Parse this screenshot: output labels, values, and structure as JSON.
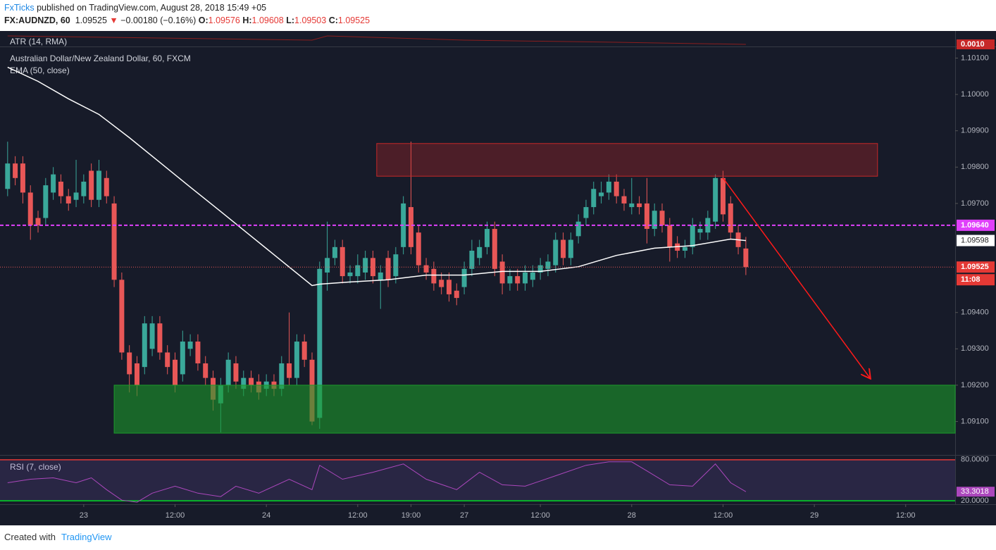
{
  "header": {
    "publisher": "FxTicks",
    "published": "published on TradingView.com, August 28, 2018 15:49 +05",
    "symbol": "FX:AUDNZD, 60",
    "last": "1.09525",
    "arrow": "▼",
    "change": "−0.00180 (−0.16%)",
    "ohlc": [
      {
        "label": "O:",
        "value": "1.09576"
      },
      {
        "label": "H:",
        "value": "1.09608"
      },
      {
        "label": "L:",
        "value": "1.09503"
      },
      {
        "label": "C:",
        "value": "1.09525"
      }
    ]
  },
  "footer": {
    "created": "Created with",
    "brand": "TradingView"
  },
  "chart_data": {
    "type": "candlestick",
    "title": "Australian Dollar/New Zealand Dollar, 60, FXCM",
    "up_color": "#3aa89a",
    "down_color": "#e85757",
    "xlim": [
      -1,
      124.5
    ],
    "xticks": [
      {
        "value": 10,
        "label": "23"
      },
      {
        "value": 22,
        "label": "12:00"
      },
      {
        "value": 34,
        "label": "24"
      },
      {
        "value": 46,
        "label": "12:00"
      },
      {
        "value": 53,
        "label": "19:00"
      },
      {
        "value": 60,
        "label": "27"
      },
      {
        "value": 70,
        "label": "12:00"
      },
      {
        "value": 82,
        "label": "28"
      },
      {
        "value": 94,
        "label": "12:00"
      },
      {
        "value": 106,
        "label": "29"
      },
      {
        "value": 118,
        "label": "12:00"
      }
    ],
    "ylim": [
      1.0901,
      1.1013
    ],
    "yticks": [
      {
        "value": 1.101,
        "label": "1.10100"
      },
      {
        "value": 1.1,
        "label": "1.10000"
      },
      {
        "value": 1.099,
        "label": "1.09900"
      },
      {
        "value": 1.098,
        "label": "1.09800"
      },
      {
        "value": 1.097,
        "label": "1.09700"
      },
      {
        "value": 1.094,
        "label": "1.09400"
      },
      {
        "value": 1.093,
        "label": "1.09300"
      },
      {
        "value": 1.092,
        "label": "1.09200"
      },
      {
        "value": 1.091,
        "label": "1.09100"
      }
    ],
    "open": [
      1.0974,
      1.0981,
      1.0981,
      1.0973,
      1.0966,
      1.0966,
      1.0973,
      1.0976,
      1.0972,
      1.0971,
      1.0972,
      1.0979,
      1.0971,
      1.0977,
      1.097,
      1.0949,
      1.0929,
      1.0926,
      1.0925,
      1.093,
      1.0937,
      1.0929,
      1.0927,
      1.0923,
      1.093,
      1.0932,
      1.0926,
      1.0922,
      1.0915,
      1.092,
      1.0926,
      1.0919,
      1.0922,
      1.0921,
      1.0919,
      1.0921,
      1.0919,
      1.0926,
      1.0922,
      1.0932,
      1.0927,
      1.0911,
      1.0951,
      1.0955,
      1.0958,
      1.095,
      1.095,
      1.0951,
      1.0955,
      1.0949,
      1.0955,
      1.095,
      1.0958,
      1.0969,
      1.0962,
      1.0953,
      1.0952,
      1.0949,
      1.0949,
      1.0946,
      1.0947,
      1.0952,
      1.0955,
      1.0958,
      1.0963,
      1.0954,
      1.0948,
      1.095,
      1.0948,
      1.0949,
      1.0951,
      1.0952,
      1.0953,
      1.096,
      1.0955,
      1.0961,
      1.0966,
      1.0969,
      1.0972,
      1.0973,
      1.0976,
      1.0972,
      1.0969,
      1.097,
      1.097,
      1.0963,
      1.0968,
      1.0964,
      1.0959,
      1.0957,
      1.0958,
      1.0962,
      1.0962,
      1.0965,
      1.0977,
      1.097,
      1.0962,
      1.09576
    ],
    "high": [
      1.0987,
      1.0983,
      1.0983,
      1.0975,
      1.0968,
      1.0977,
      1.098,
      1.0978,
      1.0974,
      1.0982,
      1.0978,
      1.0981,
      1.0982,
      1.0979,
      1.0972,
      1.0951,
      1.0931,
      1.0928,
      1.0939,
      1.0939,
      1.0939,
      1.0931,
      1.0929,
      1.0935,
      1.0934,
      1.0934,
      1.0928,
      1.0924,
      1.0922,
      1.0929,
      1.0928,
      1.0924,
      1.0924,
      1.0923,
      1.0923,
      1.0923,
      1.0928,
      1.094,
      1.0934,
      1.0934,
      1.0929,
      1.0954,
      1.0965,
      1.096,
      1.096,
      1.0953,
      1.0956,
      1.0957,
      1.0957,
      1.0953,
      1.0957,
      1.0958,
      1.0972,
      1.0987,
      1.0964,
      1.0955,
      1.0954,
      1.0951,
      1.0951,
      1.0948,
      1.0954,
      1.096,
      1.096,
      1.0965,
      1.0965,
      1.0956,
      1.0952,
      1.0952,
      1.0953,
      1.0953,
      1.0955,
      1.0956,
      1.0962,
      1.0962,
      1.0962,
      1.0967,
      1.0971,
      1.0976,
      1.0976,
      1.0978,
      1.0978,
      1.0974,
      1.0977,
      1.0972,
      1.0977,
      1.097,
      1.097,
      1.0966,
      1.0961,
      1.096,
      1.0966,
      1.0965,
      1.0968,
      1.0978,
      1.0979,
      1.0972,
      1.0964,
      1.09608
    ],
    "low": [
      1.0972,
      1.0975,
      1.097,
      1.096,
      1.0962,
      1.0964,
      1.0971,
      1.097,
      1.0968,
      1.0969,
      1.097,
      1.0969,
      1.0969,
      1.097,
      1.0947,
      1.0927,
      1.0918,
      1.0917,
      1.0923,
      1.0928,
      1.0927,
      1.0923,
      1.0918,
      1.0921,
      1.0928,
      1.0924,
      1.092,
      1.0913,
      1.0907,
      1.0918,
      1.0919,
      1.0917,
      1.0918,
      1.0916,
      1.0917,
      1.0917,
      1.0917,
      1.092,
      1.092,
      1.0925,
      1.0909,
      1.0908,
      1.0946,
      1.0953,
      1.0948,
      1.0948,
      1.0948,
      1.0949,
      1.0948,
      1.0941,
      1.0947,
      1.0948,
      1.0956,
      1.0956,
      1.0951,
      1.0949,
      1.0946,
      1.0945,
      1.0943,
      1.0942,
      1.0945,
      1.095,
      1.0953,
      1.0956,
      1.095,
      1.0945,
      1.0946,
      1.0946,
      1.0946,
      1.0947,
      1.0949,
      1.095,
      1.0951,
      1.0953,
      1.0953,
      1.0959,
      1.0964,
      1.0967,
      1.097,
      1.0971,
      1.097,
      1.0968,
      1.0967,
      1.0967,
      1.0959,
      1.0961,
      1.0962,
      1.0954,
      1.0955,
      1.0955,
      1.0956,
      1.096,
      1.096,
      1.0963,
      1.0965,
      1.096,
      1.0956,
      1.09503
    ],
    "close": [
      1.0981,
      1.0977,
      1.0973,
      1.0964,
      1.0964,
      1.0975,
      1.0978,
      1.0972,
      1.097,
      1.0973,
      1.0976,
      1.0971,
      1.0979,
      1.0972,
      1.0949,
      1.0929,
      1.0923,
      1.092,
      1.0937,
      1.0937,
      1.0929,
      1.0925,
      1.092,
      1.0932,
      1.0932,
      1.0926,
      1.0922,
      1.0916,
      1.092,
      1.0927,
      1.0921,
      1.0922,
      1.092,
      1.0918,
      1.0921,
      1.0919,
      1.0926,
      1.0922,
      1.0932,
      1.0927,
      1.091,
      1.0952,
      1.0955,
      1.0958,
      1.095,
      1.0951,
      1.0953,
      1.0955,
      1.095,
      1.0951,
      1.0949,
      1.0956,
      1.097,
      1.0958,
      1.0953,
      1.0951,
      1.0948,
      1.0947,
      1.0945,
      1.0944,
      1.0952,
      1.0957,
      1.0958,
      1.0963,
      1.0952,
      1.0948,
      1.095,
      1.0948,
      1.0951,
      1.0951,
      1.0953,
      1.0954,
      1.096,
      1.0955,
      1.096,
      1.0965,
      1.0969,
      1.0974,
      1.0973,
      1.0976,
      1.0972,
      1.097,
      1.097,
      1.0969,
      1.0963,
      1.0968,
      1.0964,
      1.0958,
      1.0957,
      1.0958,
      1.0964,
      1.0963,
      1.0966,
      1.0977,
      1.0967,
      1.0962,
      1.0958,
      1.09525
    ],
    "last_label": {
      "value": 1.09525,
      "label": "1.09525"
    },
    "countdown": "11:08",
    "level": {
      "value": 1.0964,
      "label": "1.09640",
      "color": "#e040fb"
    },
    "ema": {
      "name": "EMA (50, close)",
      "color": "#ffffff",
      "x": [
        0,
        4,
        8,
        12,
        13,
        16,
        20,
        24,
        28,
        32,
        36,
        40,
        41,
        45,
        50,
        55,
        60,
        65,
        70,
        75,
        80,
        85,
        90,
        95,
        97
      ],
      "values": [
        1.10075,
        1.10036,
        1.09988,
        1.09945,
        1.09929,
        1.09881,
        1.09813,
        1.09745,
        1.09678,
        1.0961,
        1.09542,
        1.09474,
        1.09478,
        1.09484,
        1.0949,
        1.09503,
        1.09503,
        1.09513,
        1.09513,
        1.09526,
        1.09557,
        1.09577,
        1.09584,
        1.09602,
        1.09598
      ],
      "last_label": "1.09598"
    },
    "zones": [
      {
        "x": [
          48.5,
          114.3
        ],
        "values": [
          1.09865,
          1.09775
        ],
        "color": "#c62828"
      },
      {
        "x": [
          14,
          124.5
        ],
        "values": [
          1.092,
          1.09068
        ],
        "color": "#1b9a2a"
      }
    ],
    "arrow": {
      "x": [
        94,
        113.3
      ],
      "values": [
        1.0977,
        1.0922
      ],
      "color": "#ff1a1a"
    },
    "atr": {
      "name": "ATR (14, RMA)",
      "color": "#8b1e1e",
      "ylim": [
        0.0009,
        0.0016
      ],
      "x": [
        0,
        20,
        40,
        42,
        60,
        80,
        97
      ],
      "values": [
        0.0014,
        0.0013,
        0.0012,
        0.0014,
        0.0012,
        0.0011,
        0.001
      ],
      "last_label": "0.0010"
    },
    "rsi": {
      "name": "RSI (7, close)",
      "color": "#ab47bc",
      "ylim": [
        15,
        86
      ],
      "yticks": [
        {
          "value": 80,
          "label": "80.0000"
        },
        {
          "value": 20,
          "label": "20.0000"
        }
      ],
      "x": [
        0,
        3,
        6,
        9,
        11,
        13,
        15,
        17,
        19,
        22,
        25,
        28,
        30,
        33,
        37,
        40,
        41,
        44,
        48,
        52,
        55,
        59,
        62,
        65,
        68,
        72,
        76,
        79,
        82,
        84,
        87,
        90,
        93,
        95,
        97
      ],
      "values": [
        46.4,
        51.5,
        53.6,
        46.4,
        53.6,
        36.3,
        21,
        18,
        31.2,
        41.3,
        31.2,
        26.1,
        41.3,
        31.2,
        51.5,
        36.3,
        71.9,
        51.5,
        61.7,
        73.9,
        51.5,
        36.3,
        61.7,
        43.4,
        41.3,
        56.6,
        71.9,
        76.9,
        76.9,
        63.7,
        43.4,
        41.3,
        73.9,
        46.4,
        33.3
      ],
      "last_label": "33.3018"
    }
  }
}
